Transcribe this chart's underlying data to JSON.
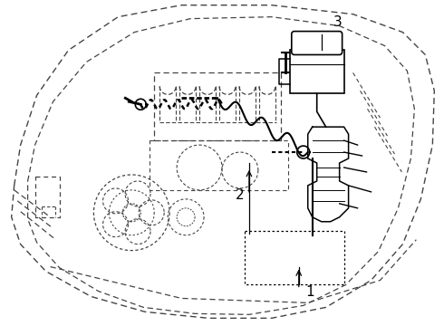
{
  "background_color": "#ffffff",
  "line_color": "#000000",
  "dashed_color": "#444444",
  "fig_width": 4.9,
  "fig_height": 3.6,
  "dpi": 100,
  "labels": [
    "1",
    "2",
    "3"
  ]
}
